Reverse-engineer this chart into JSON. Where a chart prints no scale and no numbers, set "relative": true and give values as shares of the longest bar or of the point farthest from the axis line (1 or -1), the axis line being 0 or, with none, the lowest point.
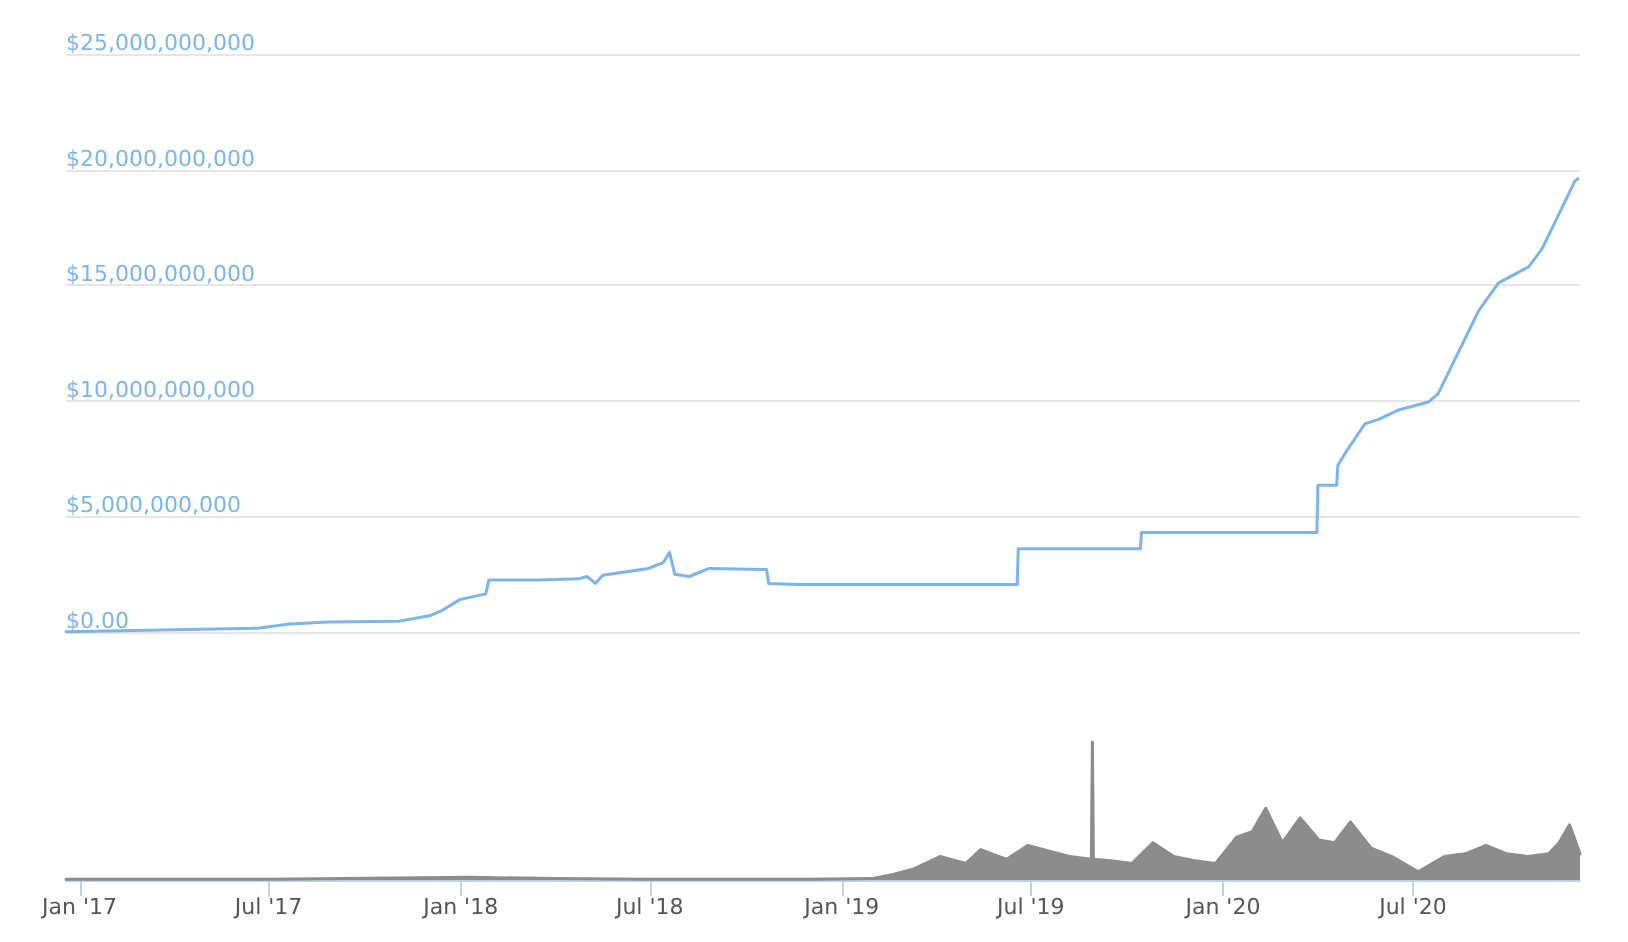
{
  "chart_data": [
    {
      "type": "line",
      "xlim": [
        "2016-12-19",
        "2020-12-08"
      ],
      "ylim": [
        0,
        25000000000
      ],
      "yticks": [
        {
          "value": 0,
          "label": "$0.00"
        },
        {
          "value": 5000000000,
          "label": "$5,000,000,000"
        },
        {
          "value": 10000000000,
          "label": "$10,000,000,000"
        },
        {
          "value": 15000000000,
          "label": "$15,000,000,000"
        },
        {
          "value": 20000000000,
          "label": "$20,000,000,000"
        },
        {
          "value": 25000000000,
          "label": "$25,000,000,000"
        }
      ],
      "grid": "y",
      "tick_labels": "y",
      "marker": "none",
      "series": [
        {
          "color": "#7cb5ec",
          "x": [
            "2016-12-19",
            "2017-06-22",
            "2017-07-21",
            "2017-08-28",
            "2017-11-03",
            "2017-12-02",
            "2017-12-15",
            "2017-12-31",
            "2018-01-25",
            "2018-01-28",
            "2018-03-17",
            "2018-04-24",
            "2018-05-02",
            "2018-05-10",
            "2018-05-17",
            "2018-06-30",
            "2018-07-14",
            "2018-07-20",
            "2018-07-25",
            "2018-08-08",
            "2018-08-27",
            "2018-10-21",
            "2018-10-23",
            "2018-11-21",
            "2019-06-18",
            "2019-06-19",
            "2019-10-14",
            "2019-10-15",
            "2020-03-31",
            "2020-04-01",
            "2020-04-19",
            "2020-04-20",
            "2020-04-28",
            "2020-05-16",
            "2020-05-29",
            "2020-06-17",
            "2020-07-16",
            "2020-07-25",
            "2020-08-19",
            "2020-09-02",
            "2020-09-21",
            "2020-10-20",
            "2020-11-02",
            "2020-11-17",
            "2020-12-03",
            "2020-12-06"
          ],
          "values": [
            10000000,
            170000000,
            350000000,
            430000000,
            470000000,
            700000000,
            950000000,
            1400000000,
            1650000000,
            2250000000,
            2250000000,
            2300000000,
            2400000000,
            2100000000,
            2450000000,
            2750000000,
            3000000000,
            3450000000,
            2500000000,
            2400000000,
            2750000000,
            2700000000,
            2100000000,
            2050000000,
            2050000000,
            3600000000,
            3600000000,
            4300000000,
            4300000000,
            6350000000,
            6350000000,
            7200000000,
            7800000000,
            9000000000,
            9200000000,
            9600000000,
            9950000000,
            10300000000,
            12600000000,
            13900000000,
            15100000000,
            15800000000,
            16600000000,
            18000000000,
            19500000000,
            19600000000
          ]
        }
      ]
    },
    {
      "type": "area",
      "relative": true,
      "xlim": [
        "2016-12-19",
        "2020-12-08"
      ],
      "xticks": [
        {
          "value": "2017-01",
          "label": "Jan '17"
        },
        {
          "value": "2017-07",
          "label": "Jul '17"
        },
        {
          "value": "2018-01",
          "label": "Jan '18"
        },
        {
          "value": "2018-07",
          "label": "Jul '18"
        },
        {
          "value": "2019-01",
          "label": "Jan '19"
        },
        {
          "value": "2019-07",
          "label": "Jul '19"
        },
        {
          "value": "2020-01",
          "label": "Jan '20"
        },
        {
          "value": "2020-07",
          "label": "Jul '20"
        }
      ],
      "tick_labels": "x",
      "series": [
        {
          "color": "#8c8c8c",
          "x": [
            "2016-12-19",
            "2017-07-01",
            "2018-01-10",
            "2018-04-01",
            "2018-07-01",
            "2018-12-01",
            "2019-01-30",
            "2019-02-19",
            "2019-03-11",
            "2019-04-05",
            "2019-04-30",
            "2019-05-14",
            "2019-06-08",
            "2019-06-28",
            "2019-07-18",
            "2019-08-07",
            "2019-08-28",
            "2019-08-29",
            "2019-08-30",
            "2019-09-16",
            "2019-10-06",
            "2019-10-26",
            "2019-11-15",
            "2019-12-05",
            "2019-12-25",
            "2020-01-14",
            "2020-01-29",
            "2020-02-11",
            "2020-02-27",
            "2020-03-15",
            "2020-04-02",
            "2020-04-17",
            "2020-05-02",
            "2020-05-22",
            "2020-06-11",
            "2020-07-06",
            "2020-07-31",
            "2020-08-20",
            "2020-09-09",
            "2020-09-29",
            "2020-10-19",
            "2020-11-08",
            "2020-11-18",
            "2020-11-28",
            "2020-12-08"
          ],
          "values": [
            0.005,
            0.005,
            0.02,
            0.01,
            0.005,
            0.005,
            0.01,
            0.04,
            0.08,
            0.17,
            0.12,
            0.22,
            0.15,
            0.25,
            0.21,
            0.17,
            0.15,
            1,
            0.15,
            0.14,
            0.12,
            0.27,
            0.17,
            0.14,
            0.12,
            0.31,
            0.35,
            0.52,
            0.27,
            0.45,
            0.29,
            0.27,
            0.42,
            0.23,
            0.17,
            0.06,
            0.17,
            0.19,
            0.25,
            0.19,
            0.17,
            0.19,
            0.27,
            0.4,
            0.19
          ]
        }
      ]
    }
  ]
}
